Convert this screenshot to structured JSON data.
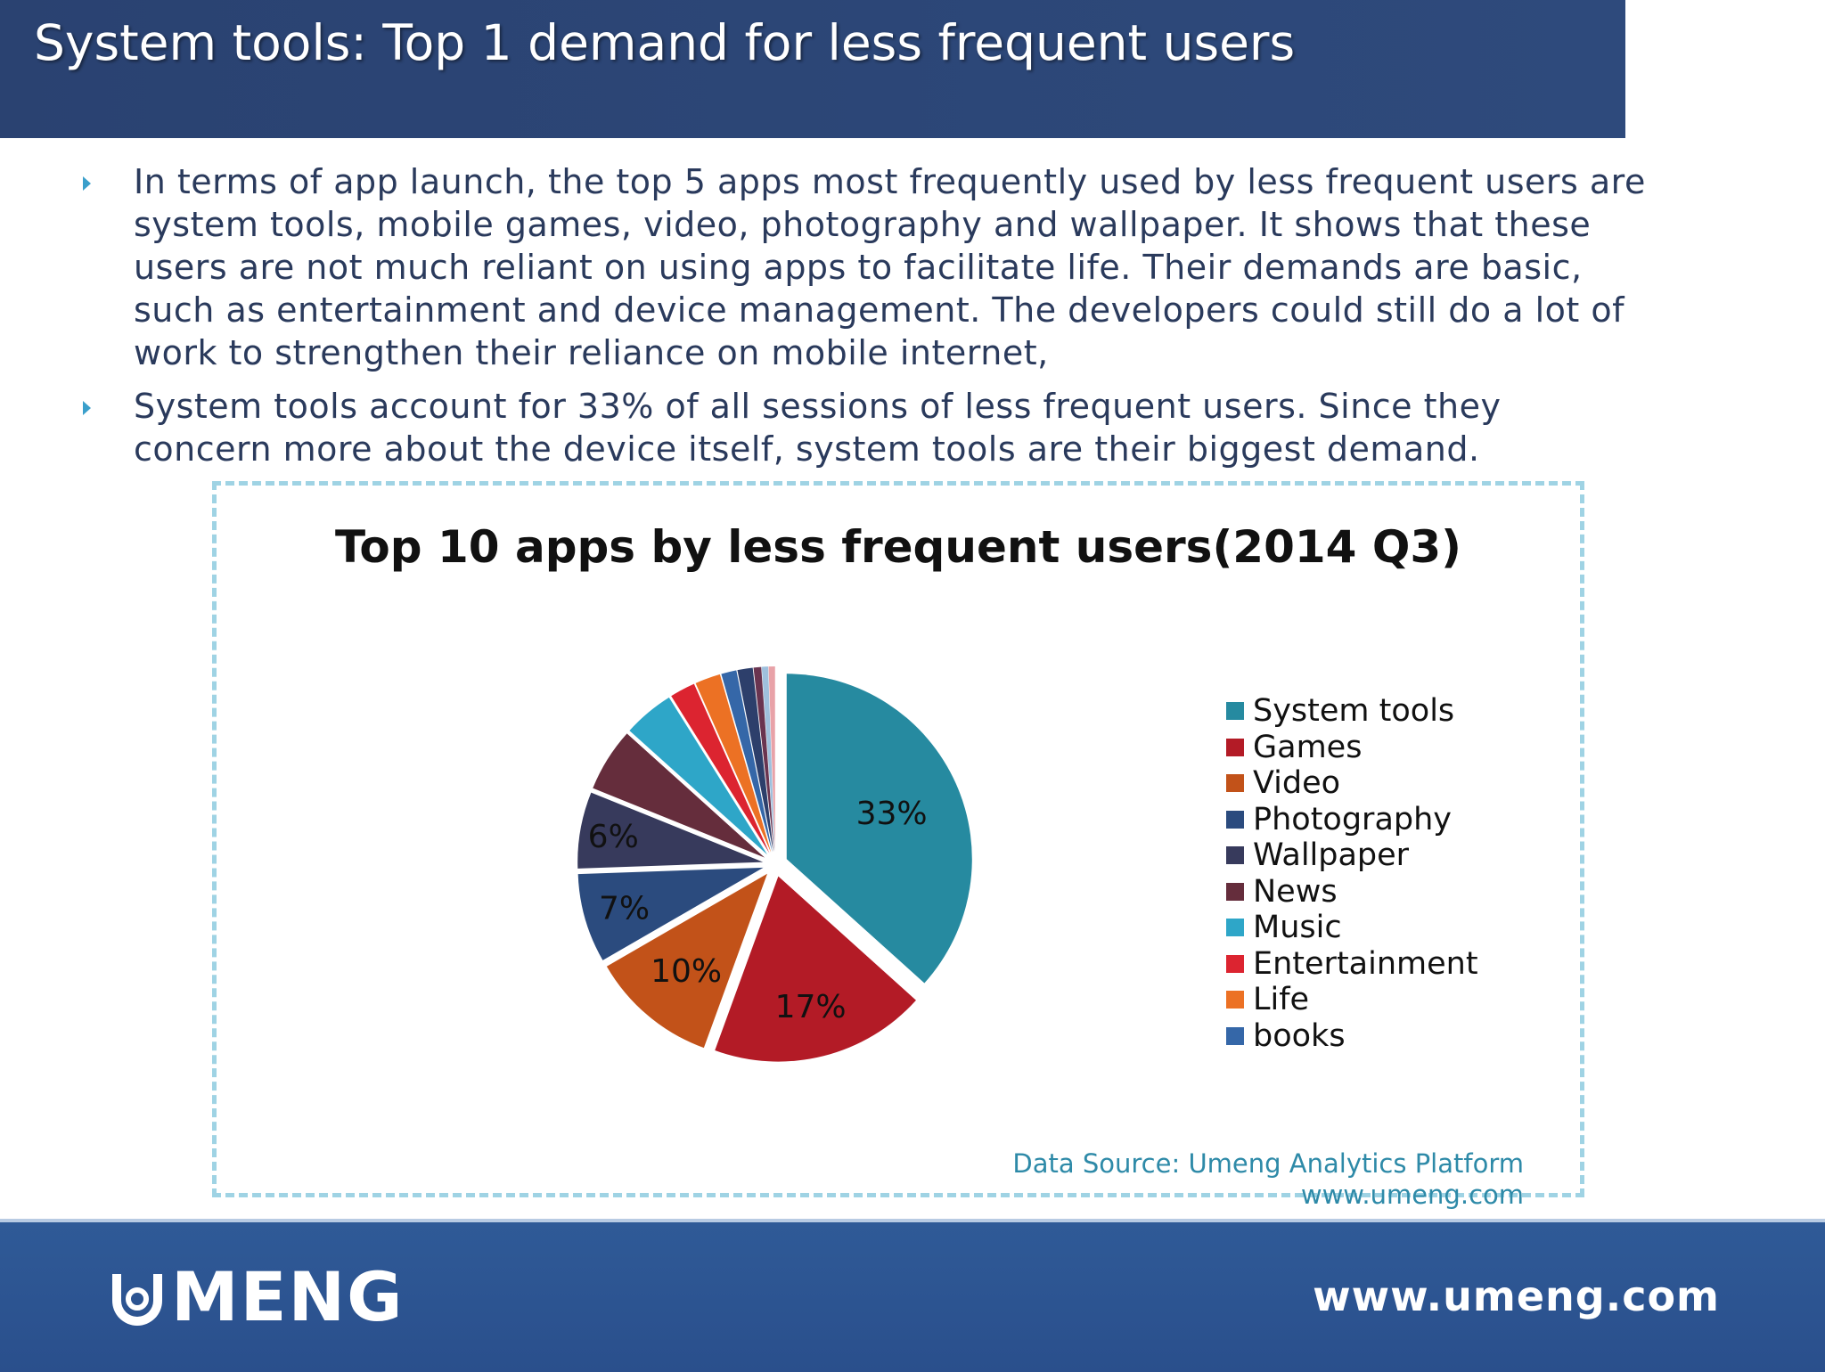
{
  "header": {
    "title": "System tools: Top 1 demand for less frequent users"
  },
  "bullets": [
    "In terms of app launch, the top 5 apps most frequently used by less frequent users are system tools, mobile games, video, photography and wallpaper. It shows that these users are not much reliant on using apps to facilitate life. Their demands are basic, such as entertainment and device management. The developers could still do a lot of work to strengthen their reliance on mobile internet,",
    "System tools account for 33% of all sessions of less frequent users. Since they concern more about the device itself, system tools are their biggest demand."
  ],
  "chart_data": {
    "type": "pie",
    "title": "Top 10 apps by less frequent users(2014 Q3)",
    "legend_position": "right",
    "slices": [
      {
        "name": "System tools",
        "value": 33,
        "label": "33%",
        "color": "#268aa0"
      },
      {
        "name": "Games",
        "value": 17,
        "label": "17%",
        "color": "#b31b26"
      },
      {
        "name": "Video",
        "value": 10,
        "label": "10%",
        "color": "#c25219"
      },
      {
        "name": "Photography",
        "value": 7,
        "label": "7%",
        "color": "#2b4b7e"
      },
      {
        "name": "Wallpaper",
        "value": 6,
        "label": "6%",
        "color": "#373a5c"
      },
      {
        "name": "News",
        "value": 5,
        "label": "",
        "color": "#652d3c"
      },
      {
        "name": "Music",
        "value": 4,
        "label": "",
        "color": "#2ea6c8"
      },
      {
        "name": "Entertainment",
        "value": 2,
        "label": "",
        "color": "#dc2430"
      },
      {
        "name": "Life",
        "value": 2,
        "label": "",
        "color": "#ec7124"
      },
      {
        "name": "books",
        "value": 1.2,
        "label": "",
        "color": "#3567a8"
      },
      {
        "name": "",
        "value": 1.2,
        "label": "",
        "color": "#2d3f6b"
      },
      {
        "name": "",
        "value": 0.6,
        "label": "",
        "color": "#6a3450"
      },
      {
        "name": "",
        "value": 0.5,
        "label": "",
        "color": "#9fc0dd"
      },
      {
        "name": "",
        "value": 0.5,
        "label": "",
        "color": "#e8a2a8"
      }
    ],
    "legend": [
      "System tools",
      "Games",
      "Video",
      "Photography",
      "Wallpaper",
      "News",
      "Music",
      "Entertainment",
      "Life",
      "books"
    ]
  },
  "source": {
    "line1": "Data Source: Umeng Analytics Platform",
    "line2": "www.umeng.com"
  },
  "footer": {
    "logo_text": "MENG",
    "url": "www.umeng.com"
  }
}
